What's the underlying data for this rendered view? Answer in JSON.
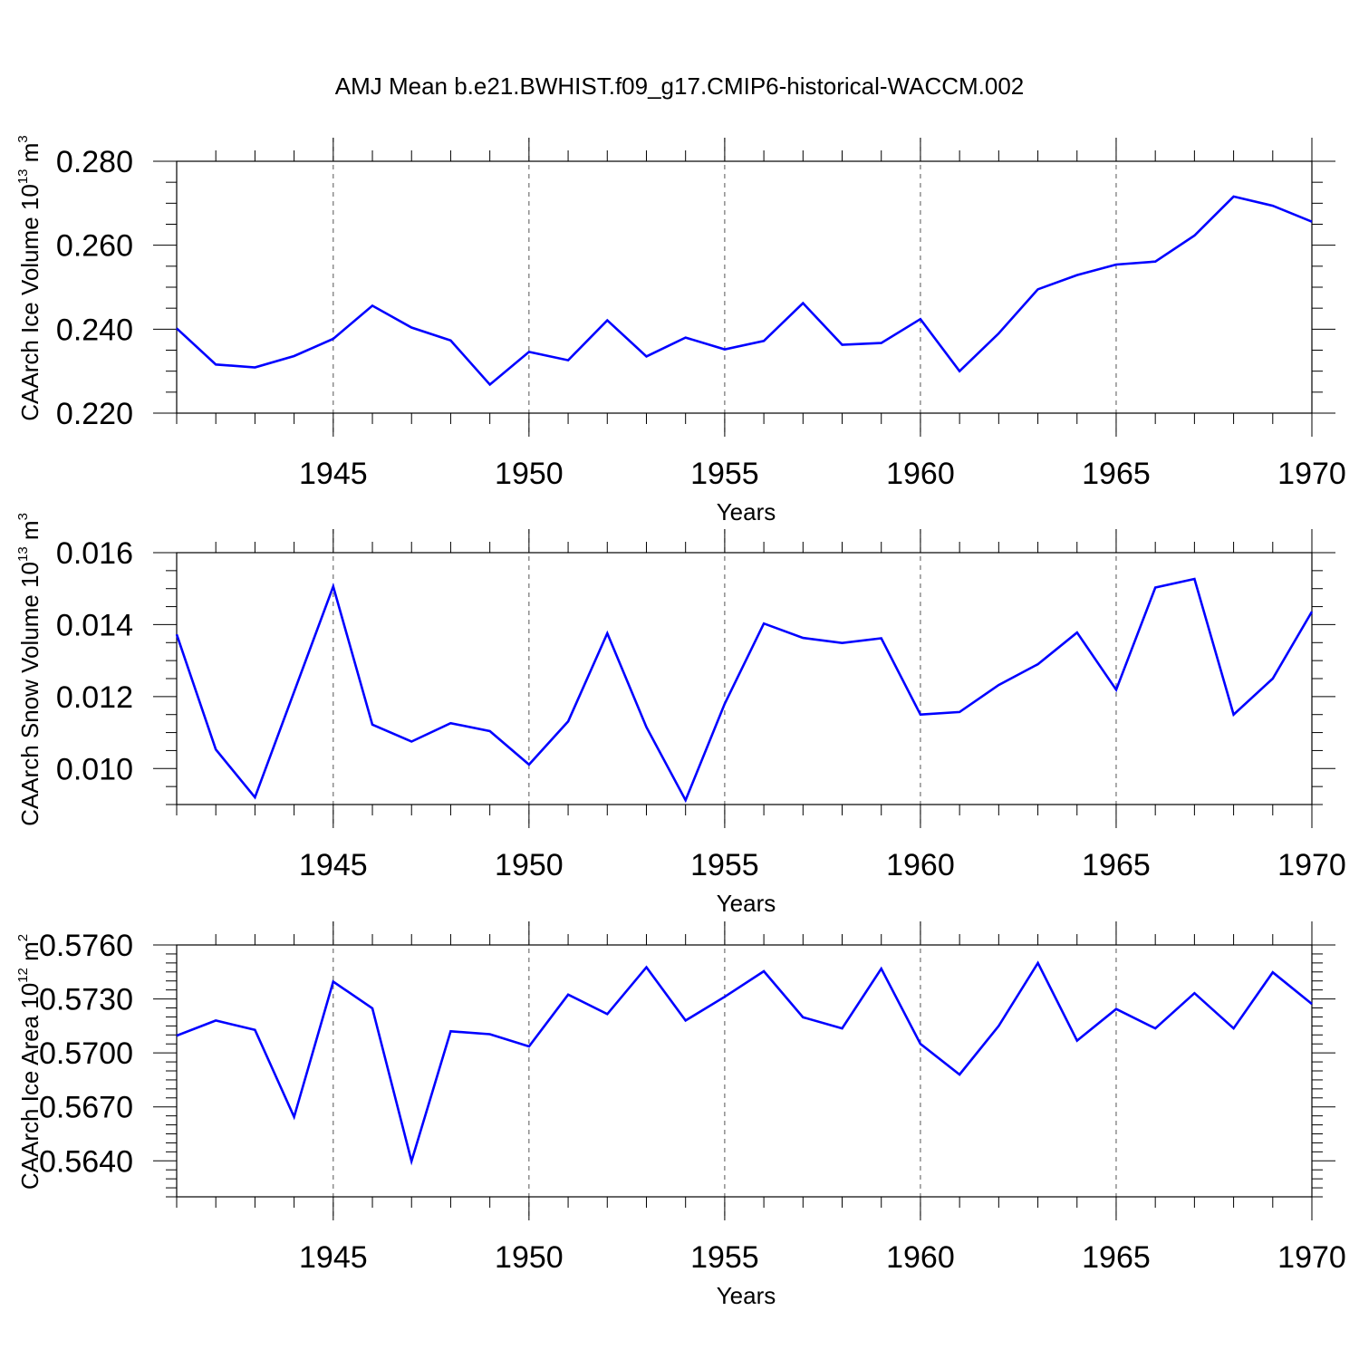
{
  "title": "AMJ Mean b.e21.BWHIST.f09_g17.CMIP6-historical-WACCM.002",
  "colors": {
    "line": "#0000ff",
    "axis": "#000000",
    "grid": "#555555"
  },
  "chart_data": [
    {
      "type": "line",
      "name": "ice-volume",
      "ylabel": {
        "text": "CAArch Ice Volume 10",
        "exp": "13",
        "unit": " m",
        "unit_exp": "3"
      },
      "xlabel": "Years",
      "xlim": [
        1941,
        1970
      ],
      "ylim": [
        0.22,
        0.28
      ],
      "x_ticks": [
        1945,
        1950,
        1955,
        1960,
        1965,
        1970
      ],
      "x_tick_labels": [
        "1945",
        "1950",
        "1955",
        "1960",
        "1965",
        "1970"
      ],
      "y_ticks": [
        0.22,
        0.24,
        0.26,
        0.28
      ],
      "y_tick_labels": [
        "0.220",
        "0.240",
        "0.260",
        "0.280"
      ],
      "y_minor_step": 0.005,
      "x": [
        1941,
        1942,
        1943,
        1944,
        1945,
        1946,
        1947,
        1948,
        1949,
        1950,
        1951,
        1952,
        1953,
        1954,
        1955,
        1956,
        1957,
        1958,
        1959,
        1960,
        1961,
        1962,
        1963,
        1964,
        1965,
        1966,
        1967,
        1968,
        1969,
        1970
      ],
      "values": [
        0.2402,
        0.2316,
        0.2309,
        0.2336,
        0.2377,
        0.2456,
        0.2404,
        0.2373,
        0.2268,
        0.2346,
        0.2326,
        0.2421,
        0.2335,
        0.238,
        0.2352,
        0.2372,
        0.2462,
        0.2363,
        0.2367,
        0.2424,
        0.23,
        0.239,
        0.2495,
        0.2529,
        0.2554,
        0.2561,
        0.2623,
        0.2716,
        0.2694,
        0.2656
      ]
    },
    {
      "type": "line",
      "name": "snow-volume",
      "ylabel": {
        "text": "CAArch Snow Volume 10",
        "exp": "13",
        "unit": " m",
        "unit_exp": "3"
      },
      "xlabel": "Years",
      "xlim": [
        1941,
        1970
      ],
      "ylim": [
        0.009,
        0.016
      ],
      "x_ticks": [
        1945,
        1950,
        1955,
        1960,
        1965,
        1970
      ],
      "x_tick_labels": [
        "1945",
        "1950",
        "1955",
        "1960",
        "1965",
        "1970"
      ],
      "y_ticks": [
        0.01,
        0.012,
        0.014,
        0.016
      ],
      "y_tick_labels": [
        "0.010",
        "0.012",
        "0.014",
        "0.016"
      ],
      "y_minor_step": 0.0005,
      "x": [
        1941,
        1942,
        1943,
        1944,
        1945,
        1946,
        1947,
        1948,
        1949,
        1950,
        1951,
        1952,
        1953,
        1954,
        1955,
        1956,
        1957,
        1958,
        1959,
        1960,
        1961,
        1962,
        1963,
        1964,
        1965,
        1966,
        1967,
        1968,
        1969,
        1970
      ],
      "values": [
        0.01373,
        0.01053,
        0.0092,
        0.01213,
        0.01506,
        0.01122,
        0.01075,
        0.01126,
        0.01104,
        0.01011,
        0.01131,
        0.01376,
        0.01115,
        0.00912,
        0.0118,
        0.01403,
        0.01363,
        0.01349,
        0.01362,
        0.0115,
        0.01157,
        0.01232,
        0.0129,
        0.01378,
        0.01219,
        0.01503,
        0.01527,
        0.0115,
        0.0125,
        0.01436
      ]
    },
    {
      "type": "line",
      "name": "ice-area",
      "ylabel": {
        "text": "CAArch Ice Area 10",
        "exp": "12",
        "unit": " m",
        "unit_exp": "2"
      },
      "xlabel": "Years",
      "xlim": [
        1941,
        1970
      ],
      "ylim": [
        0.562,
        0.576
      ],
      "x_ticks": [
        1945,
        1950,
        1955,
        1960,
        1965,
        1970
      ],
      "x_tick_labels": [
        "1945",
        "1950",
        "1955",
        "1960",
        "1965",
        "1970"
      ],
      "y_ticks": [
        0.564,
        0.567,
        0.57,
        0.573,
        0.576
      ],
      "y_tick_labels": [
        "0.5640",
        "0.5670",
        "0.5700",
        "0.5730",
        "0.5760"
      ],
      "y_minor_step": 0.0005,
      "x": [
        1941,
        1942,
        1943,
        1944,
        1945,
        1946,
        1947,
        1948,
        1949,
        1950,
        1951,
        1952,
        1953,
        1954,
        1955,
        1956,
        1957,
        1958,
        1959,
        1960,
        1961,
        1962,
        1963,
        1964,
        1965,
        1966,
        1967,
        1968,
        1969,
        1970
      ],
      "values": [
        0.57096,
        0.5718,
        0.57128,
        0.56644,
        0.57396,
        0.57248,
        0.56398,
        0.5712,
        0.57104,
        0.57036,
        0.57324,
        0.57216,
        0.57476,
        0.5718,
        0.57312,
        0.57454,
        0.57198,
        0.57136,
        0.57468,
        0.5705,
        0.5688,
        0.5715,
        0.575,
        0.57068,
        0.57244,
        0.57136,
        0.57332,
        0.57136,
        0.57448,
        0.57272
      ]
    }
  ]
}
